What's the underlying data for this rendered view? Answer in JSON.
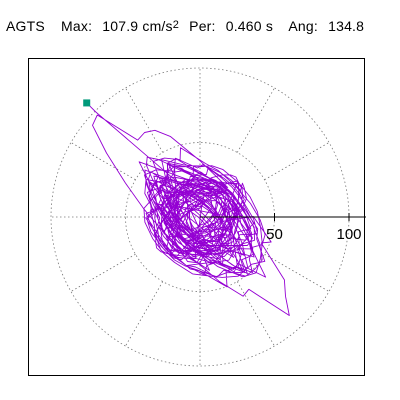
{
  "header": {
    "station": "AGTS",
    "max_label": "Max:",
    "max_value": "107.9 cm/s",
    "max_exponent": "2",
    "per_label": "Per:",
    "per_value": "0.460 s",
    "ang_label": "Ang:",
    "ang_value": "134.8"
  },
  "chart_data": {
    "type": "scatter",
    "title": "",
    "polar": true,
    "rings": [
      50,
      100
    ],
    "radial_ticks": [
      "50",
      "100"
    ],
    "spokes_deg": [
      0,
      30,
      60,
      90,
      120,
      150,
      180,
      210,
      240,
      270,
      300,
      330
    ],
    "grid": true,
    "rmax": 115,
    "series": [
      {
        "trace_color": "#9400d3",
        "marker_color": "#009a7a",
        "peak": {
          "amplitude": 107.9,
          "angle_deg": 134.8
        }
      }
    ]
  }
}
